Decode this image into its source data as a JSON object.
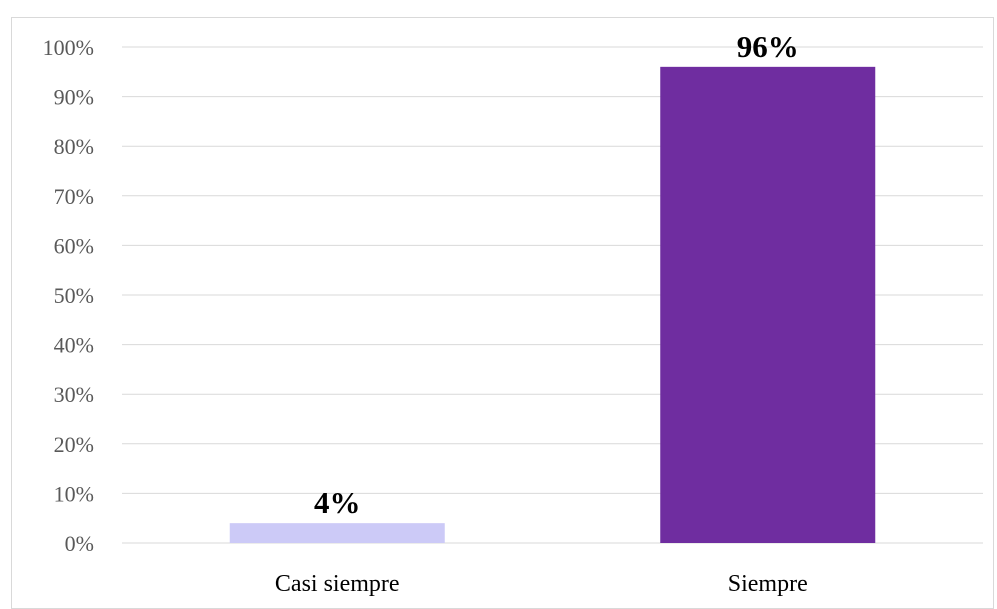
{
  "chart_data": {
    "type": "bar",
    "categories": [
      "Casi siempre",
      "Siempre"
    ],
    "values": [
      4,
      96
    ],
    "data_labels": [
      "4%",
      "96%"
    ],
    "colors": [
      "#cccaf7",
      "#6f2da0"
    ],
    "ylim": [
      0,
      100
    ],
    "y_ticks": [
      "0%",
      "10%",
      "20%",
      "30%",
      "40%",
      "50%",
      "60%",
      "70%",
      "80%",
      "90%",
      "100%"
    ],
    "grid": true,
    "gridline_color": "#d9d9d9",
    "legend": "none"
  }
}
